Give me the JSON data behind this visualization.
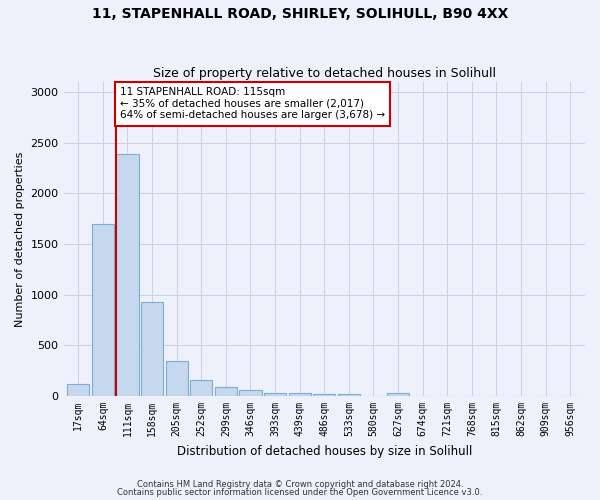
{
  "title1": "11, STAPENHALL ROAD, SHIRLEY, SOLIHULL, B90 4XX",
  "title2": "Size of property relative to detached houses in Solihull",
  "xlabel": "Distribution of detached houses by size in Solihull",
  "ylabel": "Number of detached properties",
  "categories": [
    "17sqm",
    "64sqm",
    "111sqm",
    "158sqm",
    "205sqm",
    "252sqm",
    "299sqm",
    "346sqm",
    "393sqm",
    "439sqm",
    "486sqm",
    "533sqm",
    "580sqm",
    "627sqm",
    "674sqm",
    "721sqm",
    "768sqm",
    "815sqm",
    "862sqm",
    "909sqm",
    "956sqm"
  ],
  "values": [
    120,
    1700,
    2390,
    930,
    350,
    155,
    85,
    60,
    35,
    30,
    20,
    20,
    0,
    30,
    0,
    0,
    0,
    0,
    0,
    0,
    0
  ],
  "bar_color": "#c5d8ed",
  "bar_edgecolor": "#7aafd4",
  "vline_x_index": 2,
  "vline_color": "#cc0000",
  "annotation_title": "11 STAPENHALL ROAD: 115sqm",
  "annotation_line1": "← 35% of detached houses are smaller (2,017)",
  "annotation_line2": "64% of semi-detached houses are larger (3,678) →",
  "annotation_box_color": "#cc0000",
  "ylim": [
    0,
    3100
  ],
  "yticks": [
    0,
    500,
    1000,
    1500,
    2000,
    2500,
    3000
  ],
  "footer1": "Contains HM Land Registry data © Crown copyright and database right 2024.",
  "footer2": "Contains public sector information licensed under the Open Government Licence v3.0.",
  "bg_color": "#eef1fb",
  "plot_bg_color": "#eef1fb",
  "grid_color": "#c8cfe8"
}
